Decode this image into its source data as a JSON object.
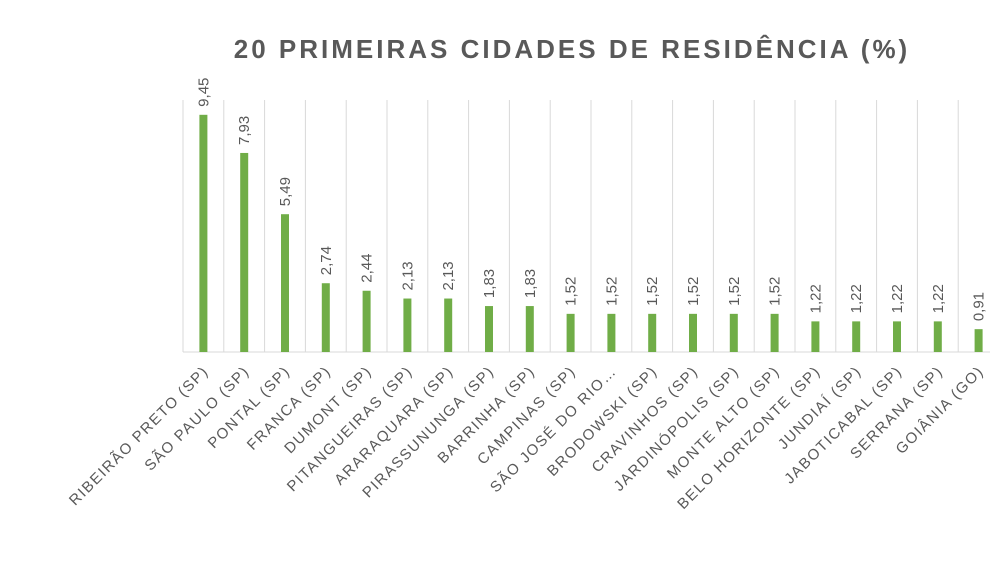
{
  "chart_data": {
    "type": "bar",
    "title": "20 PRIMEIRAS CIDADES DE RESIDÊNCIA (%)",
    "categories": [
      "RIBEIRÃO PRETO (SP)",
      "SÃO PAULO (SP)",
      "PONTAL  (SP)",
      "FRANCA  (SP)",
      "DUMONT  (SP)",
      "PITANGUEIRAS  (SP)",
      "ARARAQUARA (SP)",
      "PIRASSUNUNGA  (SP)",
      "BARRINHA  (SP)",
      "CAMPINAS  (SP)",
      "SÃO JOSÉ DO RIO…",
      "BRODOWSKI  (SP)",
      "CRAVINHOS (SP)",
      "JARDINÓPOLIS  (SP)",
      "MONTE ALTO  (SP)",
      "BELO HORIZONTE  (SP)",
      "JUNDIAÍ  (SP)",
      "JABOTICABAL  (SP)",
      "SERRANA  (SP)",
      "GOIÂNIA (GO)"
    ],
    "values": [
      9.45,
      7.93,
      5.49,
      2.74,
      2.44,
      2.13,
      2.13,
      1.83,
      1.83,
      1.52,
      1.52,
      1.52,
      1.52,
      1.52,
      1.52,
      1.22,
      1.22,
      1.22,
      1.22,
      0.91
    ],
    "value_labels": [
      "9,45",
      "7,93",
      "5,49",
      "2,74",
      "2,44",
      "2,13",
      "2,13",
      "1,83",
      "1,83",
      "1,52",
      "1,52",
      "1,52",
      "1,52",
      "1,52",
      "1,52",
      "1,22",
      "1,22",
      "1,22",
      "1,22",
      "0,91"
    ],
    "color": "#70ad47",
    "grid": true
  }
}
